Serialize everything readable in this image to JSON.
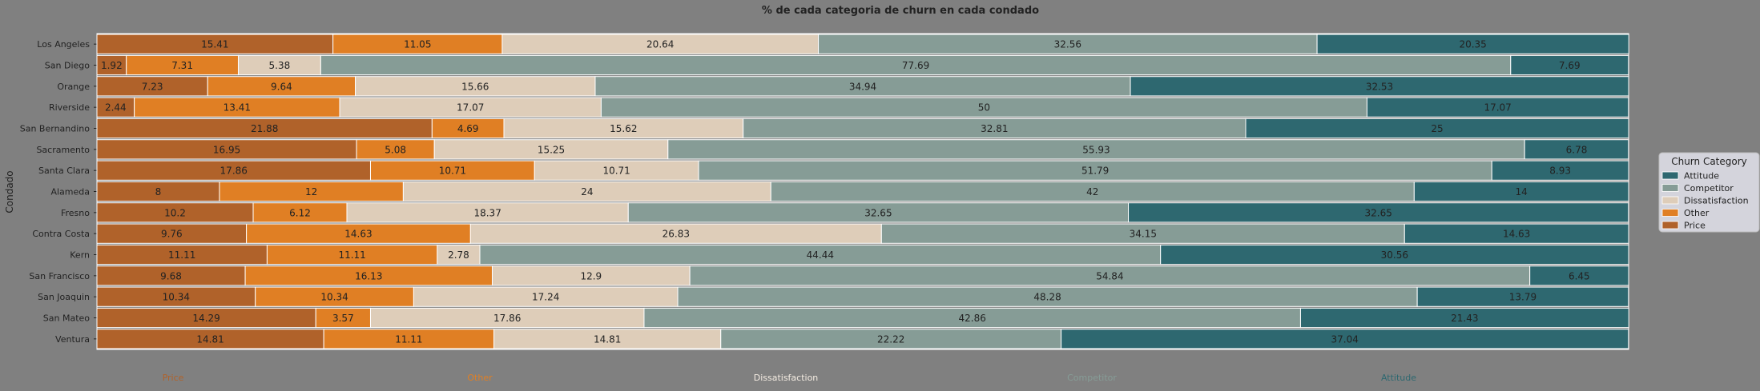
{
  "chart_data": {
    "type": "bar",
    "orientation": "horizontal",
    "stacked": true,
    "title": "% de cada categoria de churn en cada condado",
    "ylabel": "Condado",
    "xlabel": "",
    "xlim": [
      0,
      100
    ],
    "grid": false,
    "legend_title": "Churn Category",
    "legend_position": "right",
    "categories": [
      "Los Angeles",
      "San Diego",
      "Orange",
      "Riverside",
      "San Bernandino",
      "Sacramento",
      "Santa Clara",
      "Alameda",
      "Fresno",
      "Contra Costa",
      "Kern",
      "San Francisco",
      "San Joaquin",
      "San Mateo",
      "Ventura"
    ],
    "series": [
      {
        "name": "Price",
        "color": "#b0622a",
        "values": [
          15.41,
          1.92,
          7.23,
          2.44,
          21.88,
          16.95,
          17.86,
          8.0,
          10.2,
          9.76,
          11.11,
          9.68,
          10.34,
          14.29,
          14.81
        ]
      },
      {
        "name": "Other",
        "color": "#e07f24",
        "values": [
          11.05,
          7.31,
          9.64,
          13.41,
          4.69,
          5.08,
          10.71,
          12.0,
          6.12,
          14.63,
          11.11,
          16.13,
          10.34,
          3.57,
          11.11
        ]
      },
      {
        "name": "Dissatisfaction",
        "color": "#decdb9",
        "values": [
          20.64,
          5.38,
          15.66,
          17.07,
          15.62,
          15.25,
          10.71,
          24.0,
          18.37,
          26.83,
          2.78,
          12.9,
          17.24,
          17.86,
          14.81
        ]
      },
      {
        "name": "Competitor",
        "color": "#869c96",
        "values": [
          32.56,
          77.69,
          34.94,
          50.0,
          32.81,
          55.93,
          51.79,
          42.0,
          32.65,
          34.15,
          44.44,
          54.84,
          48.28,
          42.86,
          22.22
        ]
      },
      {
        "name": "Attitude",
        "color": "#2e6870",
        "values": [
          20.35,
          7.69,
          32.53,
          17.07,
          25.0,
          6.78,
          8.93,
          14.0,
          32.65,
          14.63,
          30.56,
          6.45,
          13.79,
          21.43,
          37.04
        ]
      }
    ],
    "legend_order": [
      "Attitude",
      "Competitor",
      "Dissatisfaction",
      "Other",
      "Price"
    ],
    "bottom_labels": [
      {
        "text": "Price",
        "color": "#b0622a"
      },
      {
        "text": "Other",
        "color": "#e07f24"
      },
      {
        "text": "Dissatisfaction",
        "color": "#f4ece2"
      },
      {
        "text": "Competitor",
        "color": "#869c96"
      },
      {
        "text": "Attitude",
        "color": "#2e6870"
      }
    ]
  }
}
